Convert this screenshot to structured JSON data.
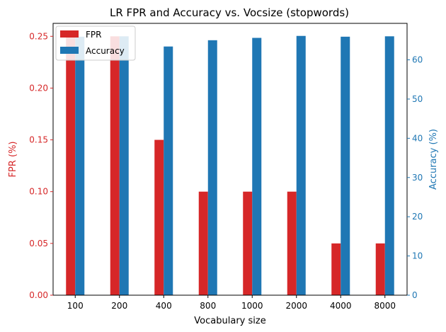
{
  "chart_data": {
    "type": "bar",
    "title": "LR FPR and Accuracy vs. Vocsize (stopwords)",
    "xlabel": "Vocabulary size",
    "categories": [
      "100",
      "200",
      "400",
      "800",
      "1000",
      "2000",
      "4000",
      "8000"
    ],
    "left_axis": {
      "label": "FPR (%)",
      "color": "#d62728",
      "lim": [
        0,
        0.2625
      ],
      "ticks": [
        "0.00",
        "0.05",
        "0.10",
        "0.15",
        "0.20",
        "0.25"
      ]
    },
    "right_axis": {
      "label": "Accuracy (%)",
      "color": "#1f77b4",
      "lim": [
        0,
        69.3
      ],
      "ticks": [
        "0",
        "10",
        "20",
        "30",
        "40",
        "50",
        "60"
      ]
    },
    "series": [
      {
        "name": "FPR",
        "axis": "left",
        "color": "#d62728",
        "values": [
          0.25,
          0.25,
          0.15,
          0.1,
          0.1,
          0.1,
          0.05,
          0.05
        ]
      },
      {
        "name": "Accuracy",
        "axis": "right",
        "color": "#1f77b4",
        "values": [
          65.9,
          66.0,
          63.4,
          65.0,
          65.6,
          66.1,
          65.9,
          66.0
        ]
      }
    ],
    "legend_position": "top-left",
    "grid": false
  }
}
